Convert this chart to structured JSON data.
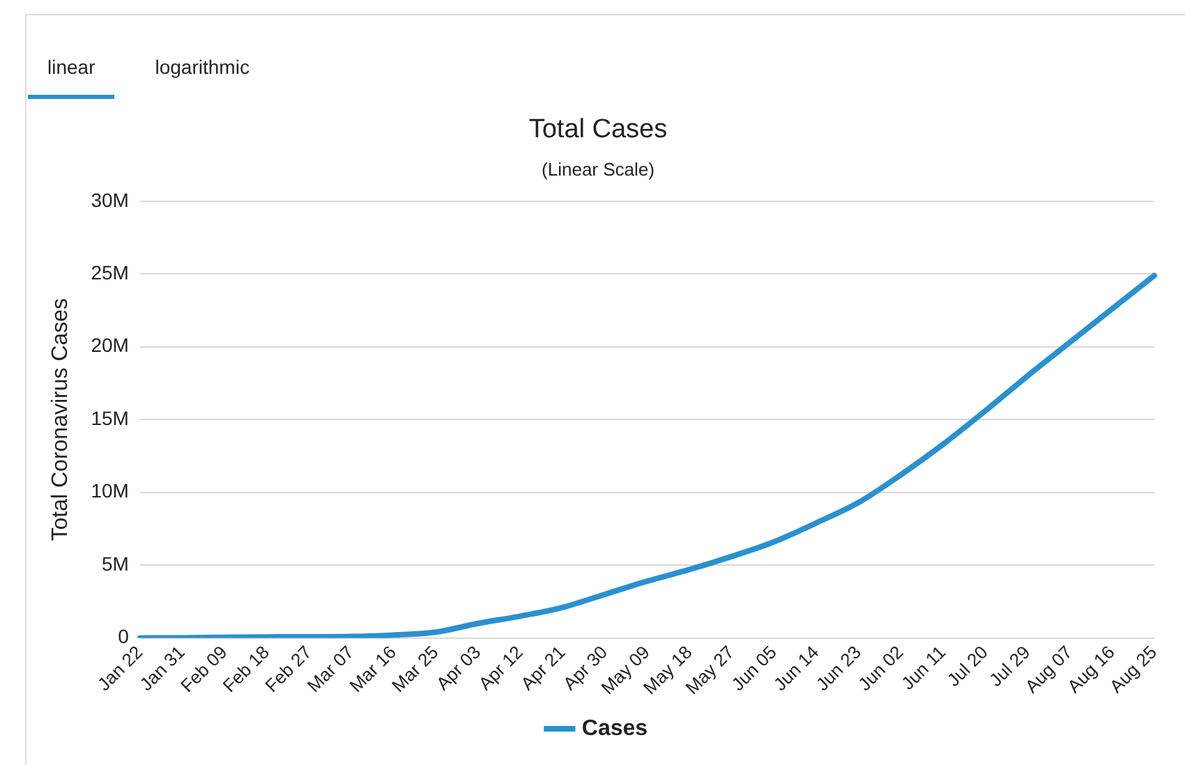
{
  "chart_data": {
    "type": "line",
    "title": "Total Cases",
    "subtitle": "(Linear Scale)",
    "ylabel": "Total Coronavirus Cases",
    "annotations": [
      "linear",
      "logarithmic"
    ],
    "categories": [
      "Jan 22",
      "Jan 31",
      "Feb 09",
      "Feb 18",
      "Feb 27",
      "Mar 07",
      "Mar 16",
      "Mar 25",
      "Apr 03",
      "Apr 12",
      "Apr 21",
      "Apr 30",
      "May 09",
      "May 18",
      "May 27",
      "Jun 05",
      "Jun 14",
      "Jun 23",
      "Jun 02",
      "Jun 11",
      "Jul 20",
      "Jul 29",
      "Aug 07",
      "Aug 16",
      "Aug 25"
    ],
    "series": [
      {
        "name": "Cases",
        "color": "#2a90d0",
        "values": [
          0,
          10000,
          40000,
          70000,
          80000,
          100000,
          200000,
          400000,
          1000000,
          1500000,
          2100000,
          3000000,
          3900000,
          4700000,
          5600000,
          6600000,
          7900000,
          9300000,
          11200000,
          13300000,
          15600000,
          18000000,
          20300000,
          22600000,
          24900000
        ]
      }
    ],
    "ylim": [
      0,
      30000000
    ],
    "yticks": [
      0,
      {
        "value": 5000000,
        "label": "5M"
      },
      {
        "value": 10000000,
        "label": "10M"
      },
      {
        "value": 15000000,
        "label": "15M"
      },
      {
        "value": 20000000,
        "label": "20M"
      },
      {
        "value": 25000000,
        "label": "25M"
      },
      {
        "value": 30000000,
        "label": "30M"
      }
    ],
    "grid": "y",
    "legend": "bottom",
    "marker": "none",
    "line_style": "solid"
  }
}
